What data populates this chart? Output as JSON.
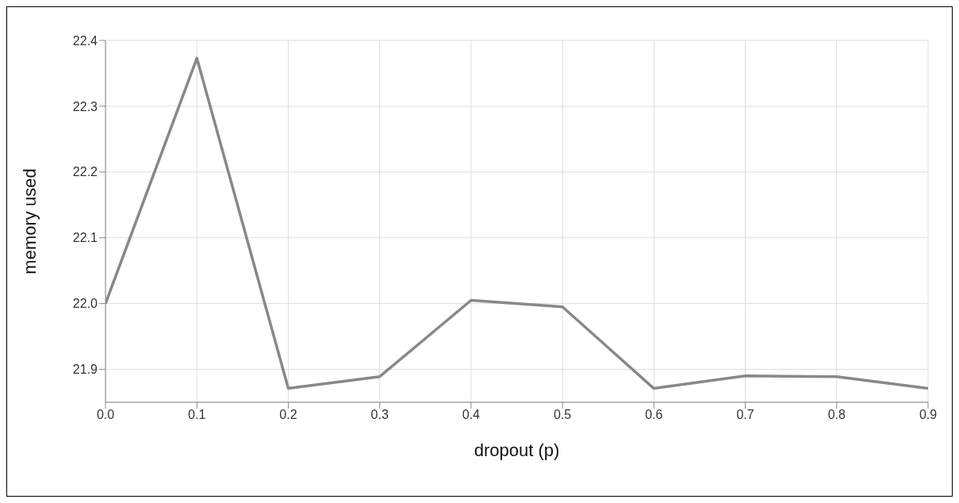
{
  "chart_data": {
    "type": "line",
    "xlabel": "dropout (p)",
    "ylabel": "memory used",
    "x": [
      0.0,
      0.1,
      0.2,
      0.3,
      0.4,
      0.5,
      0.6,
      0.7,
      0.8,
      0.9
    ],
    "series": [
      {
        "color": "#888888",
        "values": [
          22.0,
          22.373,
          21.871,
          21.889,
          22.005,
          21.995,
          21.871,
          21.89,
          21.889,
          21.871
        ]
      }
    ],
    "xlim": [
      0,
      0.9
    ],
    "xticks": [
      {
        "value": 0,
        "label": "0.0"
      },
      0.1,
      0.2,
      0.3,
      0.4,
      0.5,
      0.6,
      0.7,
      0.8,
      0.9
    ],
    "ylim": [
      21.85,
      22.4
    ],
    "yticks": [
      21.9,
      {
        "value": 22,
        "label": "22.0"
      },
      22.1,
      22.2,
      22.3,
      22.4
    ],
    "grid": true,
    "marker": "none",
    "line_style": "solid"
  }
}
